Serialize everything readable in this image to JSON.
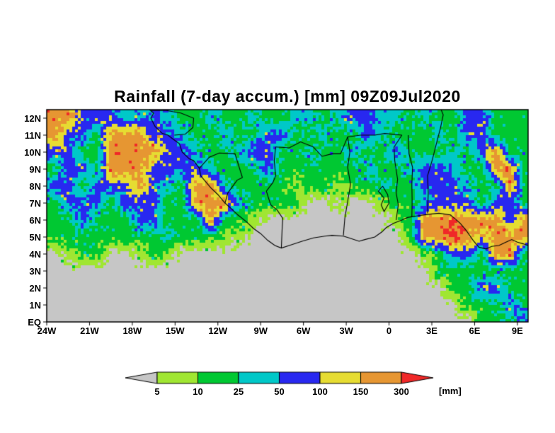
{
  "title": "Rainfall (7-day accum.) [mm] 09Z09Jul2020",
  "colors": {
    "background": "#ffffff",
    "frame": "#000000",
    "categories": [
      "#c6c6c6",
      "#a0e632",
      "#00c832",
      "#00c8c8",
      "#2828f0",
      "#e6dc32",
      "#e69632",
      "#f02828"
    ]
  },
  "axes": {
    "x_ticks": [
      "24W",
      "21W",
      "18W",
      "15W",
      "12W",
      "9W",
      "6W",
      "3W",
      "0",
      "3E",
      "6E",
      "9E"
    ],
    "x_tick_lons": [
      -24,
      -21,
      -18,
      -15,
      -12,
      -9,
      -6,
      -3,
      0,
      3,
      6,
      9
    ],
    "y_ticks": [
      "12N",
      "11N",
      "10N",
      "9N",
      "8N",
      "7N",
      "6N",
      "5N",
      "4N",
      "3N",
      "2N",
      "1N",
      "EQ"
    ],
    "y_tick_lats": [
      12,
      11,
      10,
      9,
      8,
      7,
      6,
      5,
      4,
      3,
      2,
      1,
      0
    ]
  },
  "colorbar": {
    "labels": [
      "5",
      "10",
      "25",
      "50",
      "100",
      "150",
      "300"
    ],
    "unit": "[mm]",
    "segment_colors": [
      "#c6c6c6",
      "#a0e632",
      "#00c832",
      "#00c8c8",
      "#2828f0",
      "#e6dc32",
      "#e69632",
      "#f02828"
    ]
  },
  "chart_data": {
    "type": "heatmap",
    "title": "Rainfall (7-day accum.) [mm] 09Z09Jul2020",
    "units": "mm",
    "valid_time": "09Z09Jul2020",
    "accumulation": "7-day",
    "lon_range": [
      -24,
      9.75
    ],
    "lat_range": [
      0,
      12.5
    ],
    "levels_mm": [
      5,
      10,
      25,
      50,
      100,
      150,
      300
    ],
    "category_meaning": [
      "<5",
      "5-10",
      "10-25",
      "25-50",
      "50-100",
      "100-150",
      "150-300",
      ">300"
    ],
    "grid_note": "category index per 1-degree cell; rows = 12N..EQ, cols = 24W..9E",
    "categories_grid": [
      [
        6,
        6,
        4,
        4,
        4,
        3,
        3,
        4,
        3,
        2,
        2,
        3,
        2,
        2,
        3,
        2,
        2,
        3,
        3,
        2,
        3,
        4,
        4,
        3,
        3,
        2,
        3,
        2,
        2,
        4,
        4,
        2,
        2,
        2
      ],
      [
        6,
        4,
        4,
        2,
        6,
        6,
        6,
        4,
        4,
        3,
        2,
        2,
        3,
        2,
        2,
        4,
        4,
        2,
        2,
        3,
        2,
        2,
        4,
        3,
        2,
        2,
        2,
        3,
        2,
        4,
        4,
        2,
        2,
        2
      ],
      [
        4,
        4,
        2,
        2,
        6,
        6,
        6,
        6,
        4,
        4,
        3,
        2,
        2,
        3,
        4,
        4,
        2,
        2,
        3,
        2,
        2,
        3,
        2,
        2,
        4,
        2,
        2,
        2,
        3,
        2,
        4,
        6,
        2,
        2
      ],
      [
        2,
        4,
        4,
        2,
        6,
        6,
        6,
        4,
        4,
        4,
        4,
        3,
        2,
        2,
        2,
        4,
        2,
        2,
        2,
        2,
        2,
        2,
        3,
        2,
        2,
        3,
        4,
        4,
        3,
        2,
        2,
        6,
        6,
        2
      ],
      [
        4,
        4,
        2,
        4,
        4,
        4,
        6,
        4,
        3,
        2,
        6,
        6,
        3,
        2,
        2,
        2,
        2,
        1,
        2,
        2,
        1,
        2,
        2,
        3,
        2,
        2,
        4,
        4,
        4,
        3,
        2,
        2,
        6,
        2
      ],
      [
        2,
        4,
        4,
        4,
        2,
        4,
        4,
        4,
        2,
        2,
        6,
        6,
        6,
        3,
        2,
        2,
        2,
        2,
        0,
        0,
        1,
        0,
        0,
        1,
        2,
        2,
        3,
        4,
        4,
        4,
        2,
        4,
        4,
        2
      ],
      [
        2,
        2,
        4,
        2,
        2,
        2,
        4,
        4,
        2,
        2,
        2,
        6,
        2,
        2,
        1,
        0,
        0,
        0,
        0,
        0,
        0,
        0,
        0,
        0,
        1,
        2,
        6,
        6,
        6,
        6,
        6,
        6,
        4,
        6
      ],
      [
        2,
        2,
        2,
        2,
        2,
        2,
        2,
        2,
        3,
        2,
        2,
        2,
        1,
        1,
        0,
        0,
        0,
        0,
        0,
        0,
        0,
        0,
        0,
        0,
        0,
        2,
        6,
        6,
        7,
        6,
        5,
        6,
        6,
        6
      ],
      [
        0,
        1,
        2,
        2,
        0,
        0,
        1,
        2,
        1,
        0,
        0,
        0,
        0,
        0,
        0,
        0,
        0,
        0,
        0,
        0,
        0,
        0,
        0,
        0,
        0,
        0,
        1,
        2,
        4,
        4,
        2,
        6,
        6,
        2
      ],
      [
        0,
        0,
        0,
        0,
        0,
        0,
        0,
        0,
        0,
        0,
        0,
        0,
        0,
        0,
        0,
        0,
        0,
        0,
        0,
        0,
        0,
        0,
        0,
        0,
        0,
        0,
        0,
        2,
        2,
        2,
        2,
        2,
        2,
        2
      ],
      [
        0,
        0,
        0,
        0,
        0,
        0,
        0,
        0,
        0,
        0,
        0,
        0,
        0,
        0,
        0,
        0,
        0,
        0,
        0,
        0,
        0,
        0,
        0,
        0,
        0,
        0,
        0,
        0,
        2,
        2,
        4,
        4,
        2,
        2
      ],
      [
        0,
        0,
        0,
        0,
        0,
        0,
        0,
        0,
        0,
        0,
        0,
        0,
        0,
        0,
        0,
        0,
        0,
        0,
        0,
        0,
        0,
        0,
        0,
        0,
        0,
        0,
        0,
        0,
        0,
        2,
        2,
        2,
        4,
        2
      ],
      [
        0,
        0,
        0,
        0,
        0,
        0,
        0,
        0,
        0,
        0,
        0,
        0,
        0,
        0,
        0,
        0,
        0,
        0,
        0,
        0,
        0,
        0,
        0,
        0,
        0,
        0,
        0,
        0,
        0,
        0,
        2,
        2,
        2,
        4
      ]
    ],
    "overlays": {
      "coastline": [
        [
          -16.8,
          12.5
        ],
        [
          -16.5,
          12.3
        ],
        [
          -16.7,
          12.0
        ],
        [
          -16.4,
          11.5
        ],
        [
          -15.9,
          11.1
        ],
        [
          -15.5,
          11.0
        ],
        [
          -15.2,
          10.8
        ],
        [
          -14.7,
          10.5
        ],
        [
          -14.5,
          10.0
        ],
        [
          -14.0,
          9.6
        ],
        [
          -13.7,
          9.5
        ],
        [
          -13.3,
          9.05
        ],
        [
          -13.2,
          8.6
        ],
        [
          -13.0,
          8.4
        ],
        [
          -12.5,
          7.9
        ],
        [
          -12.0,
          7.5
        ],
        [
          -11.5,
          7.0
        ],
        [
          -11.1,
          6.7
        ],
        [
          -10.6,
          6.3
        ],
        [
          -10.0,
          5.9
        ],
        [
          -9.5,
          5.5
        ],
        [
          -9.0,
          5.2
        ],
        [
          -8.5,
          4.8
        ],
        [
          -8.0,
          4.5
        ],
        [
          -7.55,
          4.35
        ],
        [
          -7.0,
          4.5
        ],
        [
          -6.1,
          4.75
        ],
        [
          -5.3,
          4.95
        ],
        [
          -4.5,
          5.05
        ],
        [
          -4.0,
          5.1
        ],
        [
          -3.2,
          5.05
        ],
        [
          -2.8,
          4.95
        ],
        [
          -2.1,
          4.75
        ],
        [
          -1.7,
          4.85
        ],
        [
          -1.0,
          5.0
        ],
        [
          -0.5,
          5.3
        ],
        [
          -0.2,
          5.55
        ],
        [
          0.3,
          5.8
        ],
        [
          0.9,
          6.0
        ],
        [
          1.3,
          6.15
        ],
        [
          2.0,
          6.25
        ],
        [
          2.9,
          6.35
        ],
        [
          3.5,
          6.4
        ],
        [
          4.3,
          6.3
        ],
        [
          4.6,
          6.1
        ],
        [
          5.0,
          5.8
        ],
        [
          5.4,
          5.4
        ],
        [
          5.9,
          4.8
        ],
        [
          6.3,
          4.4
        ],
        [
          6.8,
          4.3
        ],
        [
          7.2,
          4.45
        ],
        [
          7.7,
          4.5
        ],
        [
          8.2,
          4.7
        ],
        [
          8.6,
          4.85
        ],
        [
          9.0,
          4.7
        ],
        [
          9.4,
          4.6
        ],
        [
          9.75,
          4.5
        ]
      ],
      "borders": [
        [
          [
            -3.2,
            5.1
          ],
          [
            -3.1,
            6.1
          ],
          [
            -2.9,
            7.1
          ],
          [
            -2.7,
            8.1
          ],
          [
            -2.9,
            9.1
          ],
          [
            -2.75,
            10.0
          ],
          [
            -2.9,
            10.9
          ]
        ],
        [
          [
            -5.3,
            10.3
          ],
          [
            -4.7,
            9.75
          ],
          [
            -4.0,
            9.9
          ],
          [
            -3.4,
            9.9
          ],
          [
            -2.9,
            10.9
          ],
          [
            -2.0,
            11.0
          ],
          [
            -1.0,
            11.0
          ],
          [
            -0.3,
            11.1
          ],
          [
            0.9,
            11.0
          ]
        ],
        [
          [
            0.5,
            6.0
          ],
          [
            0.65,
            6.9
          ],
          [
            0.5,
            7.6
          ],
          [
            0.6,
            8.4
          ],
          [
            0.4,
            9.5
          ],
          [
            0.35,
            10.3
          ],
          [
            0.9,
            11.0
          ]
        ],
        [
          [
            1.6,
            6.2
          ],
          [
            1.62,
            7.1
          ],
          [
            1.6,
            8.1
          ],
          [
            1.65,
            9.1
          ],
          [
            1.4,
            9.9
          ],
          [
            1.35,
            11.0
          ]
        ],
        [
          [
            2.7,
            6.4
          ],
          [
            2.75,
            7.6
          ],
          [
            2.7,
            8.6
          ],
          [
            3.05,
            9.6
          ],
          [
            3.35,
            10.6
          ],
          [
            3.6,
            11.4
          ],
          [
            3.8,
            12.2
          ],
          [
            3.65,
            12.5
          ]
        ],
        [
          [
            -7.55,
            4.35
          ],
          [
            -7.5,
            5.4
          ],
          [
            -7.45,
            6.1
          ],
          [
            -7.85,
            6.6
          ],
          [
            -8.3,
            6.9
          ],
          [
            -8.6,
            7.7
          ],
          [
            -8.15,
            8.2
          ],
          [
            -7.95,
            8.6
          ],
          [
            -8.05,
            9.5
          ],
          [
            -7.95,
            10.3
          ]
        ],
        [
          [
            -11.5,
            7.0
          ],
          [
            -11.3,
            7.6
          ],
          [
            -10.65,
            8.35
          ],
          [
            -10.28,
            8.5
          ]
        ],
        [
          [
            -13.3,
            9.05
          ],
          [
            -12.6,
            9.7
          ],
          [
            -11.9,
            9.95
          ],
          [
            -10.8,
            9.9
          ],
          [
            -10.28,
            8.5
          ]
        ],
        [
          [
            -16.7,
            12.45
          ],
          [
            -15.6,
            12.45
          ],
          [
            -14.6,
            12.3
          ],
          [
            -13.7,
            12.0
          ],
          [
            -13.75,
            11.45
          ],
          [
            -14.3,
            11.05
          ],
          [
            -15.05,
            11.0
          ]
        ],
        [
          [
            -7.95,
            10.3
          ],
          [
            -7.0,
            10.25
          ],
          [
            -6.2,
            10.6
          ],
          [
            -5.3,
            10.3
          ]
        ]
      ],
      "lake_volta": [
        [
          -0.45,
          8.0
        ],
        [
          -0.1,
          7.5
        ],
        [
          0.0,
          7.0
        ],
        [
          -0.35,
          6.5
        ],
        [
          -0.55,
          6.9
        ],
        [
          -0.35,
          7.3
        ],
        [
          -0.75,
          7.7
        ],
        [
          -0.45,
          8.0
        ]
      ]
    }
  }
}
